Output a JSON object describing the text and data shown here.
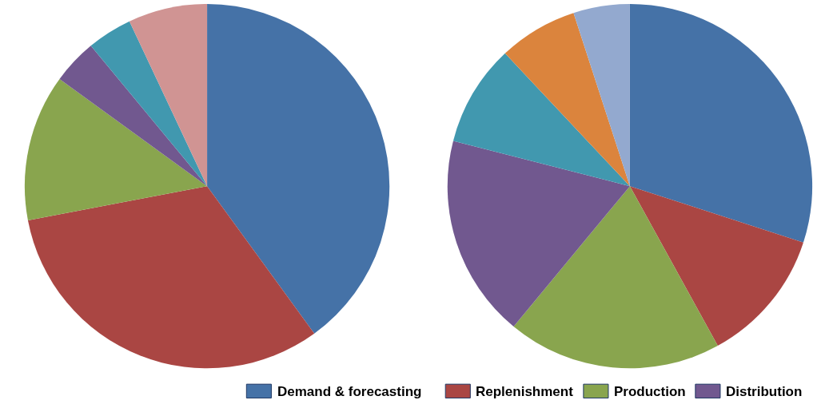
{
  "chart_data": [
    {
      "type": "pie",
      "categories": [
        "Demand & forecasting",
        "Replenishment",
        "Production",
        "Distribution",
        null,
        null
      ],
      "values": [
        40,
        32,
        13,
        4,
        4,
        7
      ],
      "colors": [
        "#4572a7",
        "#aa4643",
        "#89a54e",
        "#71588f",
        "#4198af",
        "#d09493"
      ],
      "legend": "bottom"
    },
    {
      "type": "pie",
      "categories": [
        null,
        null,
        null,
        null,
        null,
        null,
        null
      ],
      "values": [
        30,
        12,
        19,
        18,
        9,
        7,
        5
      ],
      "colors": [
        "#4572a7",
        "#aa4643",
        "#89a54e",
        "#71588f",
        "#4198af",
        "#db843d",
        "#93a9cf"
      ]
    }
  ]
}
